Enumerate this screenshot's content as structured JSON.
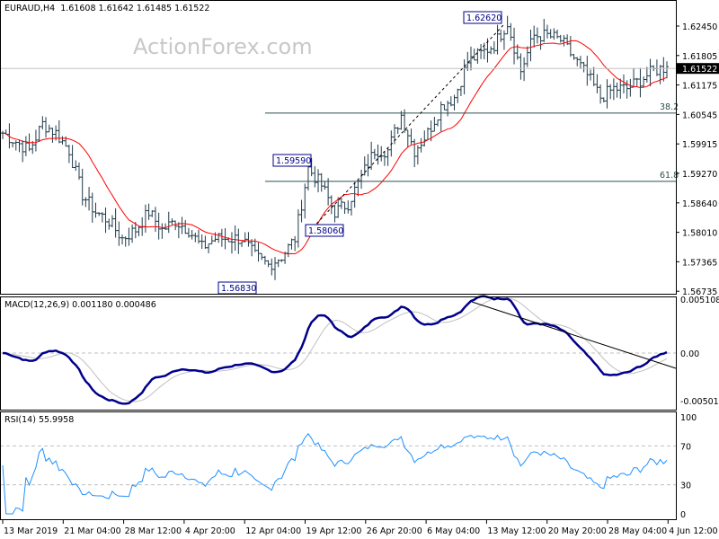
{
  "header": {
    "symbol": "EURAUD,H4",
    "ohlc": "1.61608 1.61642 1.61485 1.61522"
  },
  "watermark": "ActionForex.com",
  "chart_data": [
    {
      "type": "candlestick-bar",
      "symbol": "EURAUD",
      "timeframe": "H4",
      "ylim": [
        1.56735,
        1.6245
      ],
      "y_ticks": [
        "1.62450",
        "1.61805",
        "1.61175",
        "1.60545",
        "1.59915",
        "1.59270",
        "1.58640",
        "1.58010",
        "1.57365",
        "1.56735"
      ],
      "current_price": "1.61522",
      "x_ticks": [
        "13 Mar 2019",
        "21 Mar 04:00",
        "28 Mar 12:00",
        "4 Apr 20:00",
        "12 Apr 04:00",
        "19 Apr 12:00",
        "26 Apr 20:00",
        "6 May 04:00",
        "13 May 12:00",
        "20 May 20:00",
        "28 May 04:00",
        "4 Jun 12:00"
      ],
      "approx_closes": [
        1.6011,
        1.5992,
        1.5973,
        1.6031,
        1.6011,
        1.5973,
        1.5876,
        1.5838,
        1.5818,
        1.578,
        1.5799,
        1.5838,
        1.5799,
        1.5818,
        1.5799,
        1.576,
        1.578,
        1.578,
        1.578,
        1.5741,
        1.5722,
        1.5741,
        1.578,
        1.5934,
        1.5896,
        1.5838,
        1.5857,
        1.5915,
        1.5973,
        1.5973,
        1.605,
        1.5973,
        1.6011,
        1.6069,
        1.6089,
        1.6166,
        1.6185,
        1.6204,
        1.6253,
        1.6147,
        1.6224,
        1.6224,
        1.6214,
        1.6175,
        1.6137,
        1.6089,
        1.6108,
        1.6108,
        1.6127,
        1.6147,
        1.6156
      ],
      "moving_average_color": "#ff0000",
      "bar_color": "#1f3a4a",
      "annotations": [
        {
          "label": "1.62620",
          "price": 1.6262
        },
        {
          "label": "1.59590",
          "price": 1.5959
        },
        {
          "label": "1.58060",
          "price": 1.5806
        },
        {
          "label": "1.56830",
          "price": 1.5683
        }
      ],
      "fibonacci": [
        {
          "label": "38.2",
          "price": 1.60545
        },
        {
          "label": "61.8",
          "price": 1.5905
        }
      ]
    },
    {
      "type": "line",
      "title": "MACD(12,26,9) 0.001180 0.000486",
      "y_ticks": [
        "0.005108",
        "0.00",
        "-0.005019"
      ],
      "macd_color": "#00008b",
      "signal_color": "#c0c0c0"
    },
    {
      "type": "line",
      "title": "RSI(14) 55.9958",
      "y_ticks": [
        "100",
        "70",
        "30",
        "0"
      ],
      "levels": [
        70,
        30
      ],
      "color": "#1e90ff"
    }
  ]
}
